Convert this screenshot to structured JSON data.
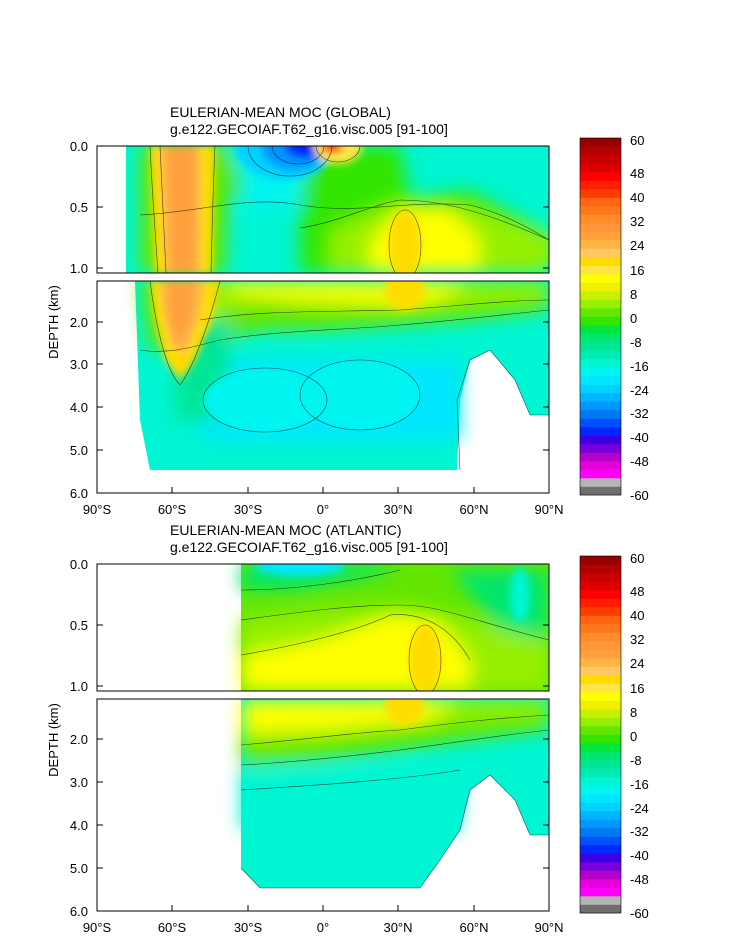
{
  "chart_data": [
    {
      "type": "heatmap",
      "title": "EULERIAN-MEAN MOC (GLOBAL)",
      "subtitle": "g.e122.GECOIAF.T62_g16.visc.005 [91-100]",
      "ylabel": "DEPTH (km)",
      "xlabel": "",
      "x_ticks": [
        "90°S",
        "60°S",
        "30°S",
        "0°",
        "30°N",
        "60°N",
        "90°N"
      ],
      "y_ticks_upper": [
        "0.0",
        "0.5",
        "1.0"
      ],
      "y_ticks_lower": [
        "2.0",
        "3.0",
        "4.0",
        "5.0",
        "6.0"
      ],
      "xlim": [
        -90,
        90
      ],
      "ylim_upper": [
        1.05,
        0.0
      ],
      "ylim_lower": [
        6.0,
        1.2
      ],
      "colorbar_labels": [
        "60",
        "48",
        "40",
        "32",
        "24",
        "16",
        "8",
        "0",
        "-8",
        "-16",
        "-24",
        "-32",
        "-40",
        "-48",
        "-60"
      ],
      "features": [
        {
          "label": "southern positive cell",
          "lat": -50,
          "depth": 1.5,
          "value": 32
        },
        {
          "label": "tropical negative cell",
          "lat": -10,
          "depth": 0.05,
          "value": -40
        },
        {
          "label": "tropical positive cell",
          "lat": 2,
          "depth": 0.05,
          "value": 48
        },
        {
          "label": "northern overturning max",
          "lat": 40,
          "depth": 1.0,
          "value": 20
        },
        {
          "label": "abyssal cell",
          "lat": -20,
          "depth": 3.8,
          "value": -16
        }
      ]
    },
    {
      "type": "heatmap",
      "title": "EULERIAN-MEAN MOC (ATLANTIC)",
      "subtitle": "g.e122.GECOIAF.T62_g16.visc.005 [91-100]",
      "ylabel": "DEPTH (km)",
      "xlabel": "",
      "x_ticks": [
        "90°S",
        "60°S",
        "30°S",
        "0°",
        "30°N",
        "60°N",
        "90°N"
      ],
      "y_ticks_upper": [
        "0.0",
        "0.5",
        "1.0"
      ],
      "y_ticks_lower": [
        "2.0",
        "3.0",
        "4.0",
        "5.0",
        "6.0"
      ],
      "xlim": [
        -90,
        90
      ],
      "ylim_upper": [
        1.05,
        0.0
      ],
      "ylim_lower": [
        6.0,
        1.2
      ],
      "colorbar_labels": [
        "60",
        "48",
        "40",
        "32",
        "24",
        "16",
        "8",
        "0",
        "-8",
        "-16",
        "-24",
        "-32",
        "-40",
        "-48",
        "-60"
      ],
      "features": [
        {
          "label": "overturning max",
          "lat": 40,
          "depth": 1.0,
          "value": 20
        },
        {
          "label": "deep cell",
          "lat": 0,
          "depth": 4.0,
          "value": -4
        }
      ]
    }
  ],
  "colorbar_colors": [
    "#6e6e6e",
    "#b4b4b4",
    "#ff00ff",
    "#e600dc",
    "#b400c8",
    "#7800dc",
    "#3c00e6",
    "#0028ff",
    "#0050ff",
    "#0078f0",
    "#0096ff",
    "#00b4ff",
    "#00d2ff",
    "#00e6ff",
    "#00f5f0",
    "#00f5d2",
    "#00eab4",
    "#00e696",
    "#00e66e",
    "#00e63c",
    "#32e600",
    "#64e600",
    "#96f000",
    "#c8f000",
    "#f0f000",
    "#ffff00",
    "#ffe646",
    "#ffdc00",
    "#ffc864",
    "#ffb446",
    "#ffa03c",
    "#ff963c",
    "#ff8c28",
    "#ff781e",
    "#ff6414",
    "#ff3c00",
    "#ff1e00",
    "#ff0000",
    "#dc0000",
    "#c80000",
    "#b40000",
    "#960000"
  ]
}
